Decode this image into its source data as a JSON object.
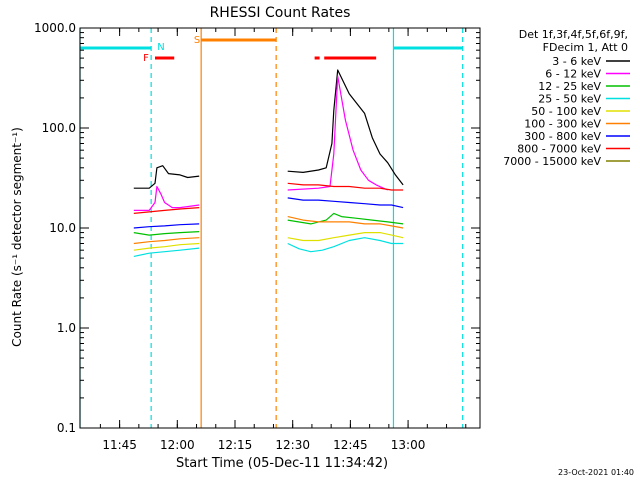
{
  "chart_data": {
    "type": "line",
    "title": "RHESSI Count Rates",
    "xlabel": "Start Time (05-Dec-11 11:34:42)",
    "ylabel": "Count Rate (s⁻¹ detector segment⁻¹)",
    "yscale": "log",
    "ylim": [
      0.1,
      1000
    ],
    "xlim_minutes": [
      0,
      104
    ],
    "x_tick_labels": [
      "11:45",
      "12:00",
      "12:15",
      "12:30",
      "12:45",
      "13:00"
    ],
    "x_tick_minutes": [
      10.3,
      25.3,
      40.3,
      55.3,
      70.3,
      85.3
    ],
    "y_tick_labels": [
      "0.1",
      "1.0",
      "10.0",
      "100.0",
      "1000.0"
    ],
    "y_tick_values": [
      0.1,
      1,
      10,
      100,
      1000
    ],
    "grid": false,
    "legend_position": "right",
    "legend_header": [
      "Det 1f,3f,4f,5f,6f,9f,",
      "FDecim 1, Att 0"
    ],
    "series": [
      {
        "name": "3 - 6 keV",
        "color": "#000000",
        "segments": [
          {
            "x": [
              14,
              18,
              19.5,
              20,
              21.5,
              23,
              26,
              28,
              31
            ],
            "y": [
              25,
              25,
              28,
              40,
              42,
              35,
              34,
              32,
              33
            ]
          },
          {
            "x": [
              54,
              58,
              62,
              64,
              65.5,
              66,
              67,
              70,
              74,
              76,
              78,
              80,
              82,
              84
            ],
            "y": [
              37,
              36,
              38,
              40,
              70,
              150,
              380,
              220,
              140,
              80,
              55,
              45,
              34,
              27
            ]
          }
        ]
      },
      {
        "name": "6 - 12 keV",
        "color": "#ff00ff",
        "segments": [
          {
            "x": [
              14,
              18,
              19.5,
              20,
              21,
              22,
              24,
              26,
              31
            ],
            "y": [
              15,
              15,
              18,
              26,
              22,
              18,
              16,
              16,
              17
            ]
          },
          {
            "x": [
              54,
              62,
              65,
              66,
              67,
              69,
              71,
              73,
              75,
              77,
              80
            ],
            "y": [
              24,
              25,
              26,
              55,
              330,
              120,
              60,
              38,
              30,
              27,
              24
            ]
          }
        ]
      },
      {
        "name": "12 - 25 keV",
        "color": "#00c000",
        "segments": [
          {
            "x": [
              14,
              18,
              22,
              26,
              31
            ],
            "y": [
              9,
              8.5,
              8.8,
              9,
              9.2
            ]
          },
          {
            "x": [
              54,
              60,
              64,
              66,
              68,
              72,
              76,
              80,
              84
            ],
            "y": [
              12,
              11,
              12,
              14,
              13,
              12.5,
              12,
              11.5,
              11
            ]
          }
        ]
      },
      {
        "name": "25 - 50 keV",
        "color": "#00e0e0",
        "segments": [
          {
            "x": [
              14,
              18,
              22,
              26,
              31
            ],
            "y": [
              5.2,
              5.6,
              5.8,
              6,
              6.3
            ]
          },
          {
            "x": [
              54,
              57,
              60,
              63,
              66,
              70,
              74,
              78,
              81,
              84
            ],
            "y": [
              7,
              6.2,
              5.8,
              6,
              6.5,
              7.5,
              8,
              7.5,
              7,
              7
            ]
          }
        ]
      },
      {
        "name": "50 - 100 keV",
        "color": "#e0e000",
        "segments": [
          {
            "x": [
              14,
              18,
              22,
              26,
              31
            ],
            "y": [
              6,
              6.3,
              6.5,
              6.8,
              7
            ]
          },
          {
            "x": [
              54,
              58,
              62,
              66,
              70,
              74,
              78,
              81,
              84
            ],
            "y": [
              8,
              7.5,
              7.5,
              8,
              8.5,
              9,
              9,
              8.5,
              8
            ]
          }
        ]
      },
      {
        "name": "100 - 300 keV",
        "color": "#ff8000",
        "segments": [
          {
            "x": [
              14,
              18,
              22,
              26,
              31
            ],
            "y": [
              7,
              7.3,
              7.5,
              7.8,
              8
            ]
          },
          {
            "x": [
              54,
              58,
              62,
              66,
              70,
              74,
              78,
              81,
              84
            ],
            "y": [
              13,
              12,
              11.5,
              11.5,
              11.5,
              11,
              11,
              10.5,
              10
            ]
          }
        ]
      },
      {
        "name": "300 - 800 keV",
        "color": "#0000ff",
        "segments": [
          {
            "x": [
              14,
              18,
              22,
              26,
              31
            ],
            "y": [
              10,
              10.3,
              10.5,
              10.8,
              11
            ]
          },
          {
            "x": [
              54,
              58,
              62,
              66,
              70,
              74,
              78,
              81,
              84
            ],
            "y": [
              20,
              19,
              19,
              18.5,
              18,
              17.5,
              17,
              17,
              16
            ]
          }
        ]
      },
      {
        "name": "800 - 7000 keV",
        "color": "#ff0000",
        "segments": [
          {
            "x": [
              14,
              18,
              22,
              26,
              31
            ],
            "y": [
              14,
              14.5,
              15,
              15.5,
              16
            ]
          },
          {
            "x": [
              54,
              58,
              62,
              66,
              70,
              74,
              78,
              81,
              84
            ],
            "y": [
              28,
              27,
              27,
              26,
              26,
              25,
              25,
              24,
              24
            ]
          }
        ]
      },
      {
        "name": "7000 - 15000 keV",
        "color": "#808000",
        "segments": []
      }
    ],
    "annotations": [
      {
        "label": "N",
        "color": "#00e0e0",
        "x": 18.5
      },
      {
        "label": "F",
        "color": "#ff0000",
        "x": 17
      },
      {
        "label": "S",
        "color": "#ff8000",
        "x": 31.5
      }
    ]
  },
  "timestamp": "23-Oct-2021 01:40"
}
